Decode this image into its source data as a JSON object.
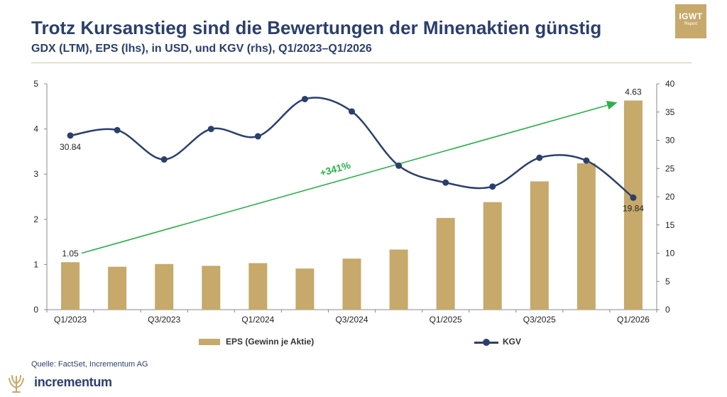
{
  "header": {
    "title": "Trotz Kursanstieg sind die Bewertungen der Minenaktien günstig",
    "subtitle": "GDX (LTM), EPS (lhs), in USD, und KGV (rhs), Q1/2023–Q1/2026"
  },
  "badge": {
    "name": "IGWT",
    "sub": "Report",
    "color": "#c6a96b"
  },
  "chart_data": {
    "type": "bar",
    "categories": [
      "Q1/2023",
      "Q2/2023",
      "Q3/2023",
      "Q4/2023",
      "Q1/2024",
      "Q2/2024",
      "Q3/2024",
      "Q4/2024",
      "Q1/2025",
      "Q2/2025",
      "Q3/2025",
      "Q4/2025",
      "Q1/2026"
    ],
    "x_tick_labels": [
      "Q1/2023",
      "",
      "Q3/2023",
      "",
      "Q1/2024",
      "",
      "Q3/2024",
      "",
      "Q1/2025",
      "",
      "Q3/2025",
      "",
      "Q1/2026"
    ],
    "series": [
      {
        "name": "EPS (Gewinn je Aktie)",
        "type": "bar",
        "axis": "left",
        "color": "#c6a96b",
        "values": [
          1.05,
          0.95,
          1.01,
          0.97,
          1.03,
          0.91,
          1.13,
          1.33,
          2.03,
          2.38,
          2.84,
          3.24,
          4.63
        ]
      },
      {
        "name": "KGV",
        "type": "line",
        "axis": "right",
        "color": "#2b3f6c",
        "values": [
          30.84,
          31.8,
          26.6,
          32.0,
          30.7,
          37.3,
          35.1,
          25.5,
          22.5,
          21.8,
          26.9,
          26.4,
          19.84
        ]
      }
    ],
    "y_left": {
      "min": 0,
      "max": 5,
      "ticks": [
        "0",
        "1",
        "2",
        "3",
        "4",
        "5"
      ]
    },
    "y_right": {
      "min": 0,
      "max": 40,
      "ticks": [
        "0",
        "5",
        "10",
        "15",
        "20",
        "25",
        "30",
        "35",
        "40"
      ]
    },
    "data_labels": {
      "eps_first": "1.05",
      "eps_last": "4.63",
      "kgv_first": "30.84",
      "kgv_last": "19.84"
    },
    "growth_arrow": {
      "label": "+341%",
      "color": "#2ab14a",
      "from_eps": 1.05,
      "to_eps": 4.63
    },
    "grid": false,
    "legend_position": "bottom"
  },
  "legend": {
    "eps": "EPS (Gewinn je Aktie)",
    "kgv": "KGV"
  },
  "source": "Quelle: FactSet, Incrementum AG",
  "brand": {
    "name": "incrementum"
  }
}
